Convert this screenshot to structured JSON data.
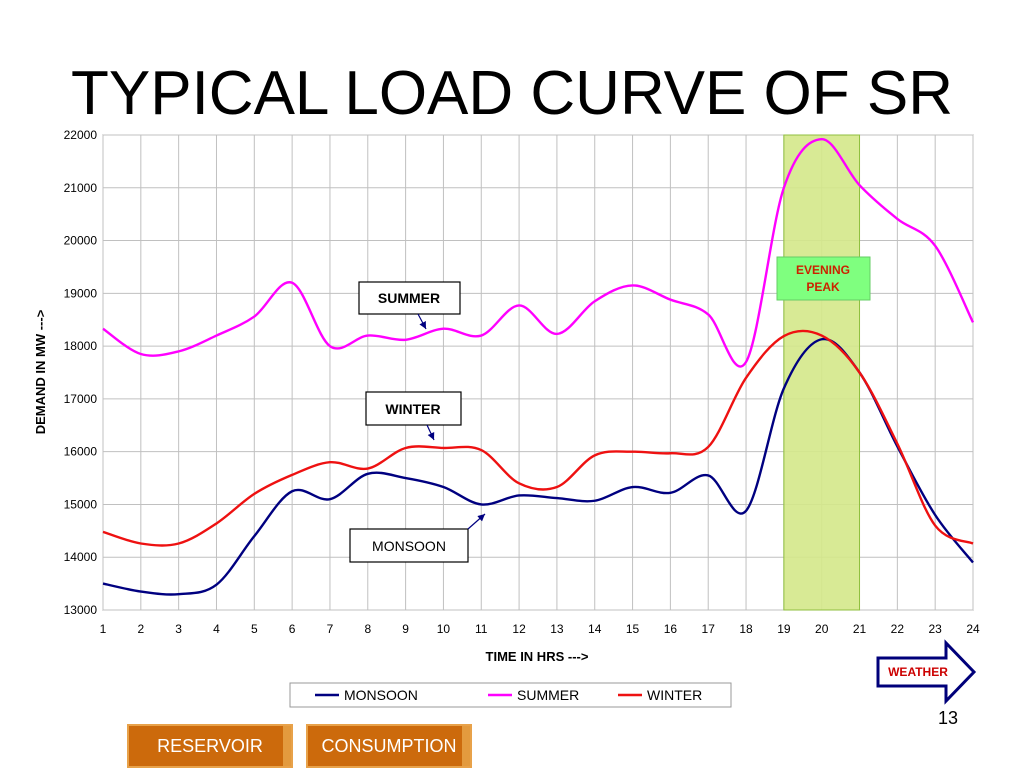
{
  "slide": {
    "title": "TYPICAL LOAD CURVE OF SR",
    "page_number": "13",
    "weather_button": "WEATHER",
    "reservoir_button": "RESERVOIR",
    "consumption_button": "CONSUMPTION"
  },
  "chart_data": {
    "type": "line",
    "xlabel": "TIME IN HRS --->",
    "ylabel": "DEMAND IN MW --->",
    "x": [
      1,
      2,
      3,
      4,
      5,
      6,
      7,
      8,
      9,
      10,
      11,
      12,
      13,
      14,
      15,
      16,
      17,
      18,
      19,
      20,
      21,
      22,
      23,
      24
    ],
    "ylim": [
      13000,
      22000
    ],
    "xlim": [
      1,
      24
    ],
    "yticks": [
      13000,
      14000,
      15000,
      16000,
      17000,
      18000,
      19000,
      20000,
      21000,
      22000
    ],
    "grid": true,
    "legend_position": "bottom",
    "series": [
      {
        "name": "MONSOON",
        "color": "#000080",
        "values": [
          13500,
          13350,
          13300,
          13480,
          14400,
          15250,
          15100,
          15580,
          15500,
          15330,
          15000,
          15170,
          15120,
          15070,
          15330,
          15220,
          15550,
          14880,
          17200,
          18130,
          17500,
          16100,
          14800,
          13900
        ]
      },
      {
        "name": "SUMMER",
        "color": "#ff00ff",
        "values": [
          18330,
          17850,
          17900,
          18200,
          18560,
          19200,
          18000,
          18200,
          18120,
          18330,
          18200,
          18770,
          18230,
          18850,
          19150,
          18880,
          18600,
          17700,
          21000,
          21920,
          21050,
          20410,
          19900,
          18450
        ]
      },
      {
        "name": "WINTER",
        "color": "#ee1111",
        "values": [
          14480,
          14260,
          14260,
          14640,
          15200,
          15560,
          15800,
          15680,
          16070,
          16070,
          16030,
          15400,
          15330,
          15930,
          16000,
          15970,
          16090,
          17400,
          18190,
          18200,
          17500,
          16150,
          14600,
          14260
        ]
      }
    ],
    "annotations": {
      "summer": "SUMMER",
      "winter": "WINTER",
      "monsoon": "MONSOON",
      "evening_peak_line1": "EVENING",
      "evening_peak_line2": "PEAK"
    },
    "highlight_band": {
      "x_from": 19,
      "x_to": 21,
      "color": "#d4e88a"
    }
  }
}
